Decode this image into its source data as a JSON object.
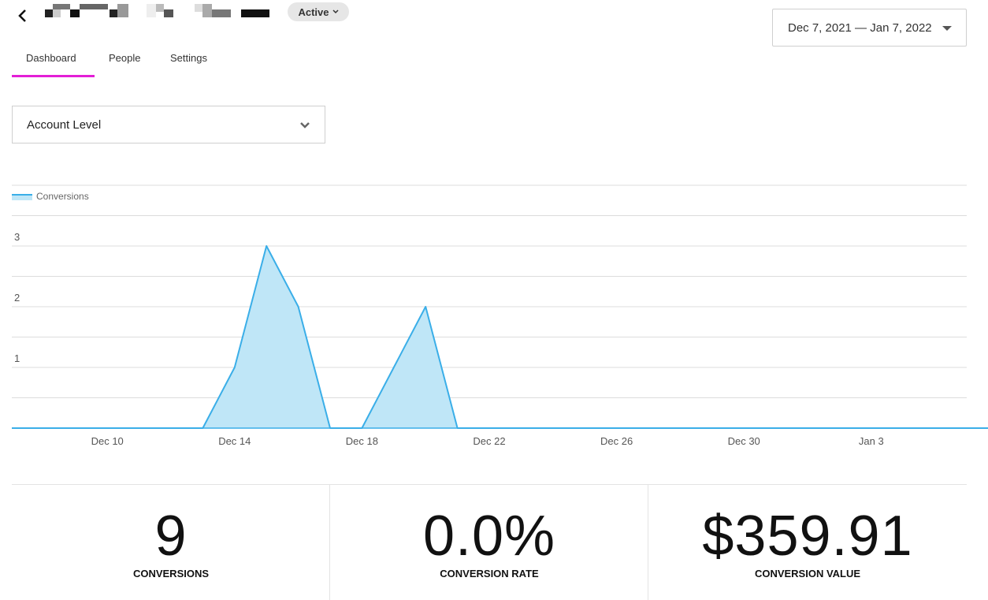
{
  "header": {
    "status": "Active",
    "date_range": "Dec 7, 2021 — Jan 7, 2022"
  },
  "tabs": [
    {
      "label": "Dashboard"
    },
    {
      "label": "People"
    },
    {
      "label": "Settings"
    }
  ],
  "level_select": {
    "value": "Account Level"
  },
  "colors": {
    "accent": "#e31fd6",
    "series": "#3aaee8",
    "series_fill": "#bfe6f7"
  },
  "chart_data": {
    "type": "area",
    "legend": [
      {
        "name": "Conversions",
        "placement": "top-left"
      }
    ],
    "x": [
      "Dec 7",
      "Dec 8",
      "Dec 9",
      "Dec 10",
      "Dec 11",
      "Dec 12",
      "Dec 13",
      "Dec 14",
      "Dec 15",
      "Dec 16",
      "Dec 17",
      "Dec 18",
      "Dec 19",
      "Dec 20",
      "Dec 21",
      "Dec 22",
      "Dec 23",
      "Dec 24",
      "Dec 25",
      "Dec 26",
      "Dec 27",
      "Dec 28",
      "Dec 29",
      "Dec 30",
      "Dec 31",
      "Jan 1",
      "Jan 2",
      "Jan 3",
      "Jan 4",
      "Jan 5",
      "Jan 6",
      "Jan 7"
    ],
    "series": [
      {
        "name": "Conversions",
        "values": [
          0,
          0,
          0,
          0,
          0,
          0,
          0,
          1,
          3,
          2,
          0,
          0,
          1,
          2,
          0,
          0,
          0,
          0,
          0,
          0,
          0,
          0,
          0,
          0,
          0,
          0,
          0,
          0,
          0,
          0,
          0,
          0
        ]
      }
    ],
    "x_tick_labels": [
      "Dec 10",
      "Dec 14",
      "Dec 18",
      "Dec 22",
      "Dec 26",
      "Dec 30",
      "Jan 3"
    ],
    "y_tick_labels": [
      "1",
      "2",
      "3"
    ],
    "ylim": [
      0,
      6
    ],
    "grid": true
  },
  "stats": [
    {
      "value": "9",
      "label": "CONVERSIONS"
    },
    {
      "value": "0.0%",
      "label": "CONVERSION RATE"
    },
    {
      "value": "$359.91",
      "label": "CONVERSION VALUE"
    }
  ]
}
